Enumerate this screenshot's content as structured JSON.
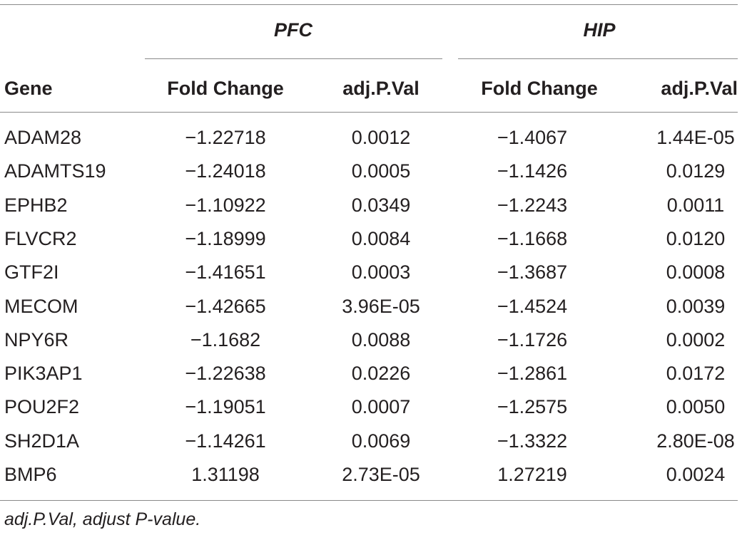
{
  "groups": {
    "pfc": "PFC",
    "hip": "HIP"
  },
  "headers": {
    "gene": "Gene",
    "pfc_fold": "Fold Change",
    "pfc_p": "adj.P.Val",
    "hip_fold": "Fold Change",
    "hip_p": "adj.P.Val"
  },
  "rows": [
    {
      "gene": "ADAM28",
      "pfc_fold": "−1.22718",
      "pfc_p": "0.0012",
      "hip_fold": "−1.4067",
      "hip_p": "1.44E-05"
    },
    {
      "gene": "ADAMTS19",
      "pfc_fold": "−1.24018",
      "pfc_p": "0.0005",
      "hip_fold": "−1.1426",
      "hip_p": "0.0129"
    },
    {
      "gene": "EPHB2",
      "pfc_fold": "−1.10922",
      "pfc_p": "0.0349",
      "hip_fold": "−1.2243",
      "hip_p": "0.0011"
    },
    {
      "gene": "FLVCR2",
      "pfc_fold": "−1.18999",
      "pfc_p": "0.0084",
      "hip_fold": "−1.1668",
      "hip_p": "0.0120"
    },
    {
      "gene": "GTF2I",
      "pfc_fold": "−1.41651",
      "pfc_p": "0.0003",
      "hip_fold": "−1.3687",
      "hip_p": "0.0008"
    },
    {
      "gene": "MECOM",
      "pfc_fold": "−1.42665",
      "pfc_p": "3.96E-05",
      "hip_fold": "−1.4524",
      "hip_p": "0.0039"
    },
    {
      "gene": "NPY6R",
      "pfc_fold": "−1.1682",
      "pfc_p": "0.0088",
      "hip_fold": "−1.1726",
      "hip_p": "0.0002"
    },
    {
      "gene": "PIK3AP1",
      "pfc_fold": "−1.22638",
      "pfc_p": "0.0226",
      "hip_fold": "−1.2861",
      "hip_p": "0.0172"
    },
    {
      "gene": "POU2F2",
      "pfc_fold": "−1.19051",
      "pfc_p": "0.0007",
      "hip_fold": "−1.2575",
      "hip_p": "0.0050"
    },
    {
      "gene": "SH2D1A",
      "pfc_fold": "−1.14261",
      "pfc_p": "0.0069",
      "hip_fold": "−1.3322",
      "hip_p": "2.80E-08"
    },
    {
      "gene": "BMP6",
      "pfc_fold": "1.31198",
      "pfc_p": "2.73E-05",
      "hip_fold": "1.27219",
      "hip_p": "0.0024"
    }
  ],
  "footnote": "adj.P.Val, adjust P-value."
}
